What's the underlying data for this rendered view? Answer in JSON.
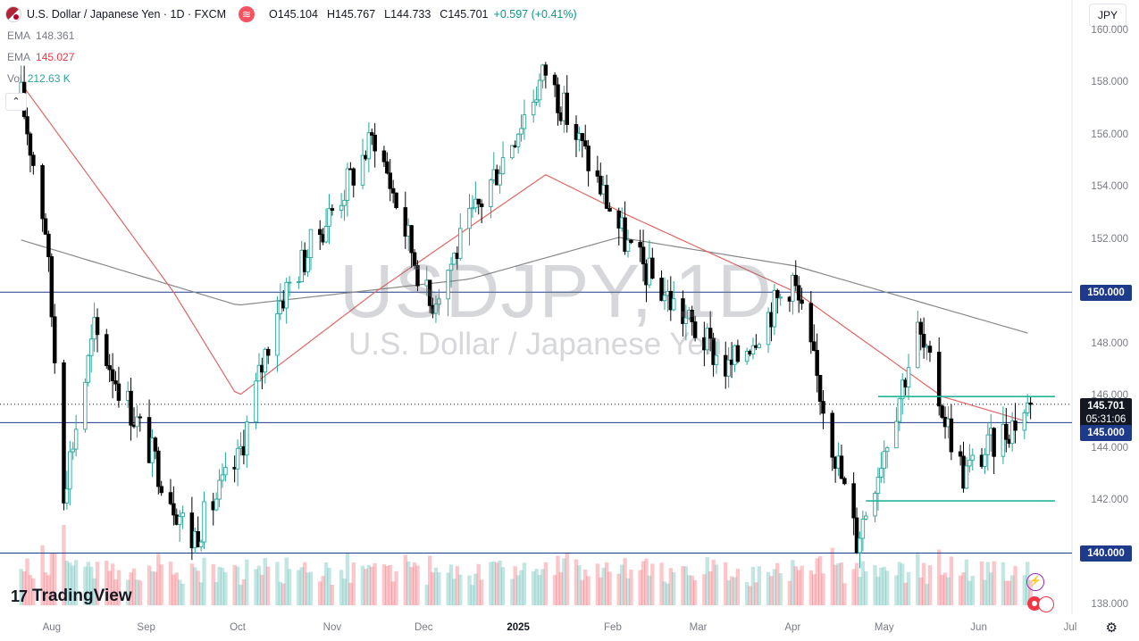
{
  "header": {
    "title": "U.S. Dollar / Japanese Yen · 1D · FXCM",
    "open_label": "O",
    "open": "145.104",
    "high_label": "H",
    "high": "145.767",
    "low_label": "L",
    "low": "144.733",
    "close_label": "C",
    "close": "145.701",
    "change": "+0.597 (+0.41%)"
  },
  "indicators": [
    {
      "name": "EMA",
      "value": "148.361",
      "color": "#787b86"
    },
    {
      "name": "EMA",
      "value": "145.027",
      "color": "#f23645"
    },
    {
      "name": "Vol",
      "value": "212.63 K",
      "color": "#26a69a"
    }
  ],
  "currency_button": "JPY",
  "watermark": {
    "symbol": "USDJPY, 1D",
    "description": "U.S. Dollar / Japanese Yen"
  },
  "brand": "TradingView",
  "price_tags": {
    "last_price": "145.701",
    "countdown": "05:31:06",
    "level_150": "150.000",
    "level_145": "145.000",
    "level_140": "140.000"
  },
  "colors": {
    "up": "#26a69a",
    "down": "#000000",
    "ema_fast": "#e06666",
    "ema_slow": "#888888",
    "horizontal_line": "#1e3a8a",
    "trendline": "#22b59a",
    "tag_blue": "#1e3a8a",
    "tag_dark": "#131722"
  },
  "chart_data": {
    "type": "candlestick",
    "symbol": "USDJPY",
    "interval": "1D",
    "ylim": [
      138,
      160
    ],
    "y_ticks": [
      "160.000",
      "158.000",
      "156.000",
      "154.000",
      "152.000",
      "150.000",
      "148.000",
      "146.000",
      "144.000",
      "142.000",
      "140.000",
      "138.000"
    ],
    "x_ticks": [
      "Aug",
      "Sep",
      "Oct",
      "Nov",
      "Dec",
      "2025",
      "Feb",
      "Mar",
      "Apr",
      "May",
      "Jun",
      "Jul"
    ],
    "price_path": [
      {
        "date": "2024-07-22",
        "price": 157.5
      },
      {
        "date": "2024-07-30",
        "price": 152.5
      },
      {
        "date": "2024-08-05",
        "price": 142.5
      },
      {
        "date": "2024-08-15",
        "price": 148.5
      },
      {
        "date": "2024-09-16",
        "price": 140.5
      },
      {
        "date": "2024-10-01",
        "price": 143.5
      },
      {
        "date": "2024-10-14",
        "price": 149.5
      },
      {
        "date": "2024-11-15",
        "price": 156.0
      },
      {
        "date": "2024-12-03",
        "price": 149.5
      },
      {
        "date": "2025-01-10",
        "price": 158.5
      },
      {
        "date": "2025-02-07",
        "price": 151.5
      },
      {
        "date": "2025-03-11",
        "price": 147.0
      },
      {
        "date": "2025-04-01",
        "price": 150.5
      },
      {
        "date": "2025-04-22",
        "price": 140.5
      },
      {
        "date": "2025-05-12",
        "price": 148.5
      },
      {
        "date": "2025-05-27",
        "price": 143.0
      },
      {
        "date": "2025-06-18",
        "price": 145.7
      }
    ],
    "ema_fast_path": [
      {
        "date": "2024-07-22",
        "price": 158.0
      },
      {
        "date": "2024-09-10",
        "price": 150.0
      },
      {
        "date": "2024-10-01",
        "price": 146.0
      },
      {
        "date": "2024-11-15",
        "price": 150.0
      },
      {
        "date": "2025-01-10",
        "price": 154.5
      },
      {
        "date": "2025-02-05",
        "price": 153.0
      },
      {
        "date": "2025-04-02",
        "price": 150.0
      },
      {
        "date": "2025-05-20",
        "price": 146.0
      },
      {
        "date": "2025-06-18",
        "price": 145.0
      }
    ],
    "ema_slow_path": [
      {
        "date": "2024-07-22",
        "price": 152.0
      },
      {
        "date": "2024-10-01",
        "price": 149.5
      },
      {
        "date": "2024-12-16",
        "price": 150.5
      },
      {
        "date": "2025-02-03",
        "price": 152.1
      },
      {
        "date": "2025-04-02",
        "price": 151.0
      },
      {
        "date": "2025-06-18",
        "price": 148.4
      }
    ],
    "horizontal_levels": [
      150,
      145,
      140
    ],
    "trendlines": [
      {
        "from": {
          "date": "2025-04-29",
          "price": 146.0
        },
        "to": {
          "date": "2025-06-26",
          "price": 146.0
        }
      },
      {
        "from": {
          "date": "2025-04-25",
          "price": 142.0
        },
        "to": {
          "date": "2025-06-26",
          "price": 142.0
        }
      }
    ],
    "last_price": 145.701,
    "volume_last": "212.63 K"
  }
}
